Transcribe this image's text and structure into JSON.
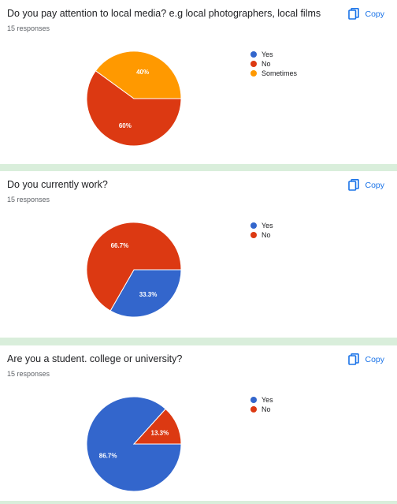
{
  "copy_label": "Copy",
  "colors": {
    "yes": "#3366cc",
    "no": "#dc3912",
    "sometimes": "#ff9900",
    "accent": "#1a73e8"
  },
  "cards": [
    {
      "title": "Do you pay attention to local media? e.g local photographers, local films",
      "responses": "15 responses",
      "legend": [
        "Yes",
        "No",
        "Sometimes"
      ],
      "chart_data": {
        "type": "pie",
        "categories": [
          "Yes",
          "No",
          "Sometimes"
        ],
        "values": [
          0,
          60,
          40
        ],
        "labels": [
          "",
          "60%",
          "40%"
        ]
      }
    },
    {
      "title": "Do you currently work?",
      "responses": "15 responses",
      "legend": [
        "Yes",
        "No"
      ],
      "chart_data": {
        "type": "pie",
        "categories": [
          "Yes",
          "No"
        ],
        "values": [
          33.3,
          66.7
        ],
        "labels": [
          "33.3%",
          "66.7%"
        ]
      }
    },
    {
      "title": "Are you a student. college or university?",
      "responses": "15 responses",
      "legend": [
        "Yes",
        "No"
      ],
      "chart_data": {
        "type": "pie",
        "categories": [
          "Yes",
          "No"
        ],
        "values": [
          86.7,
          13.3
        ],
        "labels": [
          "86.7%",
          "13.3%"
        ]
      }
    }
  ]
}
